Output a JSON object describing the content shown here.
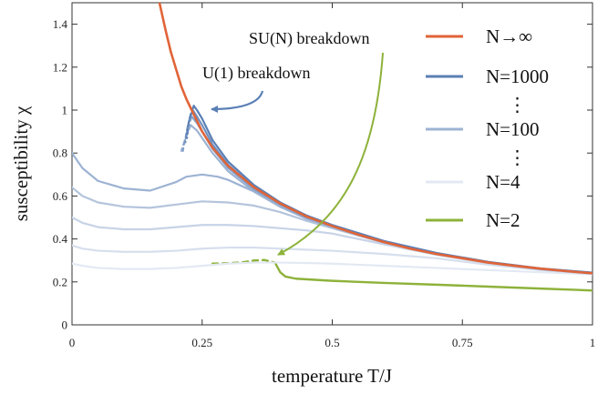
{
  "chart_data": {
    "type": "line",
    "title": "",
    "xlabel": "temperature T/J",
    "ylabel": "susceptibility χ",
    "xlim": [
      0,
      1
    ],
    "ylim": [
      0,
      1.5
    ],
    "x_ticks": [
      0,
      0.25,
      0.5,
      0.75,
      1
    ],
    "x_tick_labels": [
      "0",
      "0.25",
      "0.5",
      "0.75",
      "1"
    ],
    "y_ticks": [
      0,
      0.2,
      0.4,
      0.6,
      0.8,
      1,
      1.2,
      1.4
    ],
    "y_tick_labels": [
      "0",
      "0.2",
      "0.4",
      "0.6",
      "0.8",
      "1",
      "1.2",
      "1.4"
    ],
    "legend_position": "right",
    "legend": [
      {
        "label": "N→∞",
        "color": "#e06438"
      },
      {
        "label": "N=1000",
        "color": "#5a7fb5"
      },
      {
        "label": "N=100",
        "color": "#9db3d3"
      },
      {
        "label": "N=4",
        "color": "#e3e9f3"
      },
      {
        "label": "N=2",
        "color": "#8db23a"
      }
    ],
    "legend_ellipsis": [
      "⋮",
      "⋮"
    ],
    "annotations": [
      {
        "text": "SU(N) breakdown",
        "color": "#8db23a"
      },
      {
        "text": "U(1) breakdown",
        "color": "#5a7fb5"
      }
    ],
    "series": [
      {
        "name": "N→∞",
        "color": "#e06438",
        "width": 2.6,
        "points": [
          [
            0.168,
            1.5
          ],
          [
            0.18,
            1.37
          ],
          [
            0.19,
            1.27
          ],
          [
            0.2,
            1.19
          ],
          [
            0.21,
            1.11
          ],
          [
            0.22,
            1.05
          ],
          [
            0.23,
            1.0
          ],
          [
            0.24,
            0.95
          ],
          [
            0.25,
            0.9
          ],
          [
            0.27,
            0.825
          ],
          [
            0.3,
            0.74
          ],
          [
            0.35,
            0.64
          ],
          [
            0.4,
            0.565
          ],
          [
            0.45,
            0.505
          ],
          [
            0.5,
            0.46
          ],
          [
            0.55,
            0.42
          ],
          [
            0.6,
            0.385
          ],
          [
            0.65,
            0.355
          ],
          [
            0.7,
            0.33
          ],
          [
            0.75,
            0.31
          ],
          [
            0.8,
            0.29
          ],
          [
            0.85,
            0.275
          ],
          [
            0.9,
            0.262
          ],
          [
            0.95,
            0.25
          ],
          [
            1.0,
            0.24
          ]
        ]
      },
      {
        "name": "",
        "color": "#5a7fb5",
        "width": 2.2,
        "points": [
          [
            0.234,
            1.02
          ],
          [
            0.24,
            1.0
          ],
          [
            0.25,
            0.96
          ],
          [
            0.27,
            0.86
          ],
          [
            0.3,
            0.76
          ],
          [
            0.35,
            0.65
          ],
          [
            0.4,
            0.57
          ],
          [
            0.45,
            0.51
          ],
          [
            0.5,
            0.465
          ],
          [
            0.6,
            0.39
          ],
          [
            0.7,
            0.335
          ],
          [
            0.8,
            0.293
          ],
          [
            0.9,
            0.263
          ],
          [
            1.0,
            0.243
          ]
        ]
      },
      {
        "name": "",
        "color": "#5a7fb5",
        "dash": "5,4",
        "width": 2.2,
        "points": [
          [
            0.234,
            1.02
          ],
          [
            0.228,
            0.98
          ],
          [
            0.224,
            0.94
          ],
          [
            0.222,
            0.9
          ],
          [
            0.221,
            0.87
          ]
        ]
      },
      {
        "name": "",
        "color": "#6f90c0",
        "width": 2.2,
        "points": [
          [
            0.232,
            1.0
          ],
          [
            0.24,
            0.97
          ],
          [
            0.25,
            0.93
          ],
          [
            0.27,
            0.84
          ],
          [
            0.3,
            0.745
          ],
          [
            0.35,
            0.64
          ],
          [
            0.4,
            0.565
          ],
          [
            0.45,
            0.505
          ],
          [
            0.5,
            0.462
          ],
          [
            0.6,
            0.387
          ],
          [
            0.7,
            0.333
          ],
          [
            0.8,
            0.292
          ],
          [
            0.9,
            0.262
          ],
          [
            1.0,
            0.242
          ]
        ]
      },
      {
        "name": "",
        "color": "#6f90c0",
        "dash": "5,4",
        "width": 2.2,
        "points": [
          [
            0.232,
            1.0
          ],
          [
            0.226,
            0.96
          ],
          [
            0.222,
            0.92
          ],
          [
            0.219,
            0.88
          ],
          [
            0.218,
            0.85
          ]
        ]
      },
      {
        "name": "",
        "color": "#85a1c9",
        "width": 2.2,
        "points": [
          [
            0.23,
            0.97
          ],
          [
            0.24,
            0.94
          ],
          [
            0.25,
            0.9
          ],
          [
            0.27,
            0.82
          ],
          [
            0.3,
            0.73
          ],
          [
            0.35,
            0.63
          ],
          [
            0.4,
            0.56
          ],
          [
            0.45,
            0.5
          ],
          [
            0.5,
            0.46
          ],
          [
            0.6,
            0.385
          ],
          [
            0.7,
            0.332
          ],
          [
            0.8,
            0.291
          ],
          [
            0.9,
            0.261
          ],
          [
            1.0,
            0.241
          ]
        ]
      },
      {
        "name": "",
        "color": "#85a1c9",
        "dash": "5,4",
        "width": 2.2,
        "points": [
          [
            0.23,
            0.97
          ],
          [
            0.224,
            0.93
          ],
          [
            0.219,
            0.88
          ],
          [
            0.215,
            0.84
          ],
          [
            0.213,
            0.81
          ]
        ]
      },
      {
        "name": "",
        "color": "#9db3d3",
        "width": 2.2,
        "points": [
          [
            0.228,
            0.93
          ],
          [
            0.24,
            0.905
          ],
          [
            0.25,
            0.87
          ],
          [
            0.27,
            0.8
          ],
          [
            0.3,
            0.715
          ],
          [
            0.35,
            0.62
          ],
          [
            0.4,
            0.55
          ],
          [
            0.45,
            0.495
          ],
          [
            0.5,
            0.455
          ],
          [
            0.6,
            0.383
          ],
          [
            0.7,
            0.331
          ],
          [
            0.8,
            0.29
          ],
          [
            0.9,
            0.26
          ],
          [
            1.0,
            0.24
          ]
        ]
      },
      {
        "name": "",
        "color": "#9db3d3",
        "dash": "5,4",
        "width": 2.2,
        "points": [
          [
            0.228,
            0.93
          ],
          [
            0.22,
            0.88
          ],
          [
            0.214,
            0.84
          ],
          [
            0.21,
            0.81
          ]
        ]
      },
      {
        "name": "",
        "color": "#9db3d3",
        "width": 2.2,
        "points": [
          [
            0.0,
            0.8
          ],
          [
            0.02,
            0.73
          ],
          [
            0.05,
            0.67
          ],
          [
            0.1,
            0.635
          ],
          [
            0.15,
            0.625
          ],
          [
            0.2,
            0.665
          ],
          [
            0.22,
            0.69
          ],
          [
            0.25,
            0.7
          ],
          [
            0.28,
            0.69
          ],
          [
            0.3,
            0.675
          ],
          [
            0.35,
            0.62
          ],
          [
            0.4,
            0.55
          ],
          [
            0.45,
            0.495
          ],
          [
            0.5,
            0.455
          ],
          [
            0.6,
            0.383
          ],
          [
            0.7,
            0.331
          ],
          [
            0.8,
            0.29
          ],
          [
            0.9,
            0.26
          ],
          [
            1.0,
            0.24
          ]
        ]
      },
      {
        "name": "",
        "color": "#b4c4dc",
        "width": 2.2,
        "points": [
          [
            0.0,
            0.64
          ],
          [
            0.02,
            0.6
          ],
          [
            0.05,
            0.57
          ],
          [
            0.1,
            0.55
          ],
          [
            0.15,
            0.545
          ],
          [
            0.2,
            0.56
          ],
          [
            0.25,
            0.575
          ],
          [
            0.3,
            0.57
          ],
          [
            0.35,
            0.555
          ],
          [
            0.4,
            0.525
          ],
          [
            0.45,
            0.485
          ],
          [
            0.5,
            0.45
          ],
          [
            0.6,
            0.382
          ],
          [
            0.7,
            0.33
          ],
          [
            0.8,
            0.289
          ],
          [
            0.9,
            0.259
          ],
          [
            1.0,
            0.239
          ]
        ]
      },
      {
        "name": "",
        "color": "#c7d3e6",
        "width": 2.2,
        "points": [
          [
            0.0,
            0.5
          ],
          [
            0.02,
            0.475
          ],
          [
            0.05,
            0.455
          ],
          [
            0.1,
            0.445
          ],
          [
            0.15,
            0.445
          ],
          [
            0.2,
            0.455
          ],
          [
            0.25,
            0.465
          ],
          [
            0.3,
            0.465
          ],
          [
            0.35,
            0.46
          ],
          [
            0.4,
            0.45
          ],
          [
            0.45,
            0.44
          ],
          [
            0.5,
            0.425
          ],
          [
            0.6,
            0.375
          ],
          [
            0.7,
            0.326
          ],
          [
            0.8,
            0.287
          ],
          [
            0.9,
            0.258
          ],
          [
            1.0,
            0.238
          ]
        ]
      },
      {
        "name": "",
        "color": "#d6dfed",
        "width": 2.2,
        "points": [
          [
            0.0,
            0.37
          ],
          [
            0.02,
            0.355
          ],
          [
            0.05,
            0.345
          ],
          [
            0.1,
            0.34
          ],
          [
            0.15,
            0.34
          ],
          [
            0.2,
            0.345
          ],
          [
            0.25,
            0.355
          ],
          [
            0.3,
            0.36
          ],
          [
            0.35,
            0.36
          ],
          [
            0.4,
            0.355
          ],
          [
            0.45,
            0.35
          ],
          [
            0.5,
            0.345
          ],
          [
            0.6,
            0.33
          ],
          [
            0.7,
            0.31
          ],
          [
            0.8,
            0.28
          ],
          [
            0.9,
            0.255
          ],
          [
            1.0,
            0.237
          ]
        ]
      },
      {
        "name": "",
        "color": "#e3e9f3",
        "width": 2.2,
        "points": [
          [
            0.0,
            0.285
          ],
          [
            0.02,
            0.275
          ],
          [
            0.05,
            0.265
          ],
          [
            0.1,
            0.26
          ],
          [
            0.15,
            0.26
          ],
          [
            0.2,
            0.265
          ],
          [
            0.25,
            0.275
          ],
          [
            0.3,
            0.285
          ],
          [
            0.35,
            0.29
          ],
          [
            0.4,
            0.29
          ],
          [
            0.45,
            0.288
          ],
          [
            0.5,
            0.285
          ],
          [
            0.6,
            0.275
          ],
          [
            0.7,
            0.265
          ],
          [
            0.8,
            0.255
          ],
          [
            0.9,
            0.245
          ],
          [
            1.0,
            0.235
          ]
        ]
      },
      {
        "name": "",
        "color": "#8db23a",
        "dash": "6,5",
        "width": 2.4,
        "points": [
          [
            0.27,
            0.285
          ],
          [
            0.3,
            0.287
          ],
          [
            0.33,
            0.292
          ],
          [
            0.35,
            0.3
          ],
          [
            0.37,
            0.302
          ],
          [
            0.39,
            0.29
          ]
        ]
      },
      {
        "name": "",
        "color": "#8db23a",
        "width": 2.4,
        "points": [
          [
            0.39,
            0.29
          ],
          [
            0.4,
            0.245
          ],
          [
            0.41,
            0.225
          ],
          [
            0.43,
            0.215
          ],
          [
            0.5,
            0.205
          ],
          [
            0.6,
            0.195
          ],
          [
            0.7,
            0.187
          ],
          [
            0.8,
            0.178
          ],
          [
            0.9,
            0.169
          ],
          [
            1.0,
            0.16
          ]
        ]
      }
    ]
  }
}
